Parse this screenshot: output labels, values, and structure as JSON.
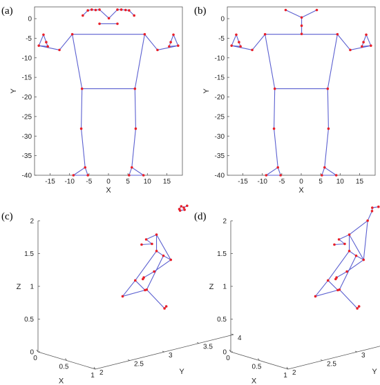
{
  "chart_data": [
    {
      "type": "scatter",
      "label": "(a)",
      "xlabel": "X",
      "ylabel": "Y",
      "xlim": [
        -19,
        19
      ],
      "ylim": [
        -40,
        3
      ],
      "xticks": [
        -15,
        -10,
        -5,
        0,
        5,
        10,
        15
      ],
      "yticks": [
        0,
        -5,
        -10,
        -15,
        -20,
        -25,
        -30,
        -35,
        -40
      ],
      "joints": {
        "neck_l": [
          -2.3,
          -1.3
        ],
        "neck_r": [
          2.3,
          -1.3
        ],
        "f1": [
          -6.6,
          0.8
        ],
        "f2": [
          -5.3,
          2.1
        ],
        "f3": [
          -4.3,
          2.3
        ],
        "f4": [
          -3.3,
          2.2
        ],
        "f5": [
          -2.3,
          2.3
        ],
        "f6": [
          0.1,
          0.1
        ],
        "f7": [
          2.3,
          2.3
        ],
        "f8": [
          3.3,
          2.3
        ],
        "f9": [
          4.4,
          2.2
        ],
        "f10": [
          5.3,
          2.1
        ],
        "f11": [
          6.6,
          0.8
        ],
        "sh_l": [
          -9.3,
          -4.0
        ],
        "sh_r": [
          9.3,
          -4.0
        ],
        "el_l": [
          -12.6,
          -8.0
        ],
        "el_r": [
          12.6,
          -8.0
        ],
        "wr_l": [
          -17.9,
          -6.9
        ],
        "wr_r": [
          17.9,
          -6.9
        ],
        "ha_l": [
          -16.7,
          -4.1
        ],
        "ha_r": [
          16.7,
          -4.1
        ],
        "th_l": [
          -16.0,
          -6.0
        ],
        "th_r": [
          16.0,
          -6.0
        ],
        "fi_l": [
          -15.6,
          -7.1
        ],
        "fi_r": [
          15.6,
          -7.1
        ],
        "hip_l": [
          -6.8,
          -17.9
        ],
        "hip_r": [
          6.8,
          -17.9
        ],
        "kn_l": [
          -7.0,
          -28.1
        ],
        "kn_r": [
          7.0,
          -28.1
        ],
        "an_l": [
          -6.0,
          -38.0
        ],
        "an_r": [
          6.0,
          -38.0
        ],
        "to_l": [
          -9.0,
          -40.0
        ],
        "to_r": [
          9.0,
          -40.0
        ],
        "he_l": [
          -5.3,
          -40.0
        ],
        "he_r": [
          5.3,
          -40.0
        ]
      },
      "bones": [
        [
          "neck_l",
          "neck_r"
        ],
        [
          "f1",
          "f2"
        ],
        [
          "f2",
          "f3"
        ],
        [
          "f3",
          "f4"
        ],
        [
          "f4",
          "f5"
        ],
        [
          "f5",
          "f6"
        ],
        [
          "f6",
          "f7"
        ],
        [
          "f7",
          "f8"
        ],
        [
          "f8",
          "f9"
        ],
        [
          "f9",
          "f10"
        ],
        [
          "f10",
          "f11"
        ],
        [
          "sh_l",
          "sh_r"
        ],
        [
          "sh_l",
          "el_l"
        ],
        [
          "el_l",
          "wr_l"
        ],
        [
          "wr_l",
          "ha_l"
        ],
        [
          "ha_l",
          "th_l"
        ],
        [
          "th_l",
          "fi_l"
        ],
        [
          "fi_l",
          "wr_l"
        ],
        [
          "sh_r",
          "el_r"
        ],
        [
          "el_r",
          "wr_r"
        ],
        [
          "wr_r",
          "ha_r"
        ],
        [
          "ha_r",
          "th_r"
        ],
        [
          "th_r",
          "fi_r"
        ],
        [
          "fi_r",
          "wr_r"
        ],
        [
          "sh_l",
          "hip_l"
        ],
        [
          "sh_r",
          "hip_r"
        ],
        [
          "hip_l",
          "hip_r"
        ],
        [
          "hip_l",
          "kn_l"
        ],
        [
          "kn_l",
          "an_l"
        ],
        [
          "an_l",
          "to_l"
        ],
        [
          "an_l",
          "he_l"
        ],
        [
          "to_l",
          "he_l"
        ],
        [
          "hip_r",
          "kn_r"
        ],
        [
          "kn_r",
          "an_r"
        ],
        [
          "an_r",
          "to_r"
        ],
        [
          "an_r",
          "he_r"
        ],
        [
          "to_r",
          "he_r"
        ]
      ]
    },
    {
      "type": "scatter",
      "label": "(b)",
      "xlabel": "X",
      "ylabel": "Y",
      "xlim": [
        -19,
        19
      ],
      "ylim": [
        -40,
        3
      ],
      "xticks": [
        -15,
        -10,
        -5,
        0,
        5,
        10,
        15
      ],
      "yticks": [
        0,
        -5,
        -10,
        -15,
        -20,
        -25,
        -30,
        -35,
        -40
      ],
      "joints": {
        "head_l": [
          -4.0,
          2.2
        ],
        "head_r": [
          4.0,
          2.2
        ],
        "head_c": [
          0.1,
          0.3
        ],
        "neck1": [
          0.1,
          -1.8
        ],
        "neck2": [
          0.1,
          -3.9
        ],
        "sh_l": [
          -9.3,
          -4.0
        ],
        "sh_r": [
          9.3,
          -4.0
        ],
        "el_l": [
          -12.6,
          -8.0
        ],
        "el_r": [
          12.6,
          -8.0
        ],
        "wr_l": [
          -17.9,
          -6.9
        ],
        "wr_r": [
          17.9,
          -6.9
        ],
        "ha_l": [
          -16.7,
          -4.1
        ],
        "ha_r": [
          16.7,
          -4.1
        ],
        "th_l": [
          -16.0,
          -6.0
        ],
        "th_r": [
          16.0,
          -6.0
        ],
        "fi_l": [
          -15.6,
          -7.1
        ],
        "fi_r": [
          15.6,
          -7.1
        ],
        "hip_l": [
          -6.8,
          -17.9
        ],
        "hip_r": [
          6.8,
          -17.9
        ],
        "kn_l": [
          -7.0,
          -28.1
        ],
        "kn_r": [
          7.0,
          -28.1
        ],
        "an_l": [
          -6.0,
          -38.0
        ],
        "an_r": [
          6.0,
          -38.0
        ],
        "to_l": [
          -9.0,
          -40.0
        ],
        "to_r": [
          9.0,
          -40.0
        ],
        "he_l": [
          -5.3,
          -40.0
        ],
        "he_r": [
          5.3,
          -40.0
        ]
      },
      "bones": [
        [
          "head_l",
          "head_c"
        ],
        [
          "head_r",
          "head_c"
        ],
        [
          "head_c",
          "neck1"
        ],
        [
          "neck1",
          "neck2"
        ],
        [
          "sh_l",
          "sh_r"
        ],
        [
          "sh_l",
          "el_l"
        ],
        [
          "el_l",
          "wr_l"
        ],
        [
          "wr_l",
          "ha_l"
        ],
        [
          "ha_l",
          "th_l"
        ],
        [
          "th_l",
          "fi_l"
        ],
        [
          "fi_l",
          "wr_l"
        ],
        [
          "sh_r",
          "el_r"
        ],
        [
          "el_r",
          "wr_r"
        ],
        [
          "wr_r",
          "ha_r"
        ],
        [
          "ha_r",
          "th_r"
        ],
        [
          "th_r",
          "fi_r"
        ],
        [
          "fi_r",
          "wr_r"
        ],
        [
          "sh_l",
          "hip_l"
        ],
        [
          "sh_r",
          "hip_r"
        ],
        [
          "hip_l",
          "hip_r"
        ],
        [
          "hip_l",
          "kn_l"
        ],
        [
          "kn_l",
          "an_l"
        ],
        [
          "an_l",
          "to_l"
        ],
        [
          "an_l",
          "he_l"
        ],
        [
          "to_l",
          "he_l"
        ],
        [
          "hip_r",
          "kn_r"
        ],
        [
          "kn_r",
          "an_r"
        ],
        [
          "an_r",
          "to_r"
        ],
        [
          "an_r",
          "he_r"
        ],
        [
          "to_r",
          "he_r"
        ]
      ]
    },
    {
      "type": "scatter3d",
      "label": "(c)",
      "xlabel": "X",
      "ylabel": "Y",
      "zlabel": "Z",
      "xlim": [
        0,
        1
      ],
      "ylim": [
        2,
        4
      ],
      "zlim": [
        0,
        2
      ],
      "xticks": [
        "0",
        "0.5",
        "1"
      ],
      "yticks": [
        "2",
        "2.5",
        "3",
        "3.5",
        "4"
      ],
      "zticks": [
        "0",
        "0.5",
        "1",
        "1.5",
        "2"
      ],
      "joints": {
        "h1": [
          0.56,
          3.58,
          1.91
        ],
        "h2": [
          0.57,
          3.6,
          1.95
        ],
        "h3": [
          0.59,
          3.62,
          1.93
        ],
        "h4": [
          0.6,
          3.66,
          1.95
        ],
        "h5": [
          0.58,
          3.64,
          1.89
        ],
        "h6": [
          0.55,
          3.6,
          1.88
        ],
        "sh_a": [
          0.38,
          3.4,
          1.52
        ],
        "sh_b": [
          0.75,
          3.3,
          1.26
        ],
        "el_a": [
          0.2,
          3.4,
          1.4
        ],
        "el_b": [
          0.7,
          3.1,
          1.12
        ],
        "wr_a": [
          0.18,
          3.5,
          1.3
        ],
        "wr_b": [
          0.64,
          3.0,
          1.04
        ],
        "ha_a": [
          0.12,
          3.4,
          1.3
        ],
        "ha_b": [
          0.6,
          3.02,
          1.0
        ],
        "hip_a": [
          0.38,
          3.4,
          1.27
        ],
        "hip_b": [
          0.5,
          3.4,
          1.23
        ],
        "kn_a": [
          0.25,
          3.2,
          0.84
        ],
        "kn_b": [
          0.57,
          3.1,
          0.81
        ],
        "an_a": [
          0.24,
          3.35,
          0.65
        ],
        "an_b": [
          0.64,
          3.3,
          0.49
        ],
        "to_a": [
          0.03,
          3.2,
          0.54
        ],
        "to_b": [
          0.55,
          3.4,
          0.47
        ]
      },
      "bones": [
        [
          "h1",
          "h2"
        ],
        [
          "h2",
          "h3"
        ],
        [
          "h3",
          "h4"
        ],
        [
          "h3",
          "h5"
        ],
        [
          "h5",
          "h6"
        ],
        [
          "sh_a",
          "sh_b"
        ],
        [
          "sh_a",
          "el_a"
        ],
        [
          "el_a",
          "wr_a"
        ],
        [
          "wr_a",
          "ha_a"
        ],
        [
          "sh_b",
          "el_b"
        ],
        [
          "el_b",
          "wr_b"
        ],
        [
          "wr_b",
          "ha_b"
        ],
        [
          "sh_a",
          "hip_a"
        ],
        [
          "sh_b",
          "hip_b"
        ],
        [
          "hip_a",
          "hip_b"
        ],
        [
          "hip_a",
          "kn_a"
        ],
        [
          "kn_a",
          "an_a"
        ],
        [
          "an_a",
          "to_a"
        ],
        [
          "kn_a",
          "to_a"
        ],
        [
          "hip_b",
          "kn_b"
        ],
        [
          "kn_b",
          "an_b"
        ],
        [
          "an_b",
          "to_b"
        ]
      ]
    },
    {
      "type": "scatter3d",
      "label": "(d)",
      "xlabel": "X",
      "ylabel": "Y",
      "zlabel": "Z",
      "xlim": [
        0,
        1
      ],
      "ylim": [
        2,
        4
      ],
      "zlim": [
        0,
        2
      ],
      "xticks": [
        "0",
        "0.5",
        "1"
      ],
      "yticks": [
        "2",
        "2.5",
        "3",
        "3.5",
        "4"
      ],
      "zticks": [
        "0",
        "0.5",
        "1",
        "1.5",
        "2"
      ],
      "joints": {
        "h1": [
          0.54,
          3.6,
          1.92
        ],
        "h2": [
          0.6,
          3.64,
          1.94
        ],
        "h3": [
          0.56,
          3.58,
          1.88
        ],
        "n1": [
          0.58,
          3.5,
          1.76
        ],
        "sh_a": [
          0.38,
          3.4,
          1.52
        ],
        "sh_b": [
          0.75,
          3.3,
          1.26
        ],
        "el_a": [
          0.2,
          3.4,
          1.4
        ],
        "el_b": [
          0.7,
          3.1,
          1.12
        ],
        "wr_a": [
          0.18,
          3.5,
          1.3
        ],
        "wr_b": [
          0.64,
          3.0,
          1.04
        ],
        "ha_a": [
          0.12,
          3.4,
          1.3
        ],
        "ha_b": [
          0.6,
          3.02,
          1.0
        ],
        "hip_a": [
          0.38,
          3.4,
          1.27
        ],
        "hip_b": [
          0.5,
          3.4,
          1.23
        ],
        "kn_a": [
          0.25,
          3.2,
          0.84
        ],
        "kn_b": [
          0.57,
          3.1,
          0.81
        ],
        "an_a": [
          0.24,
          3.35,
          0.65
        ],
        "an_b": [
          0.64,
          3.3,
          0.49
        ],
        "to_a": [
          0.03,
          3.2,
          0.54
        ],
        "to_b": [
          0.55,
          3.4,
          0.47
        ]
      },
      "bones": [
        [
          "h1",
          "h2"
        ],
        [
          "h1",
          "h3"
        ],
        [
          "h3",
          "n1"
        ],
        [
          "n1",
          "sh_a"
        ],
        [
          "n1",
          "sh_b"
        ],
        [
          "sh_a",
          "sh_b"
        ],
        [
          "sh_a",
          "el_a"
        ],
        [
          "el_a",
          "wr_a"
        ],
        [
          "wr_a",
          "ha_a"
        ],
        [
          "sh_b",
          "el_b"
        ],
        [
          "el_b",
          "wr_b"
        ],
        [
          "wr_b",
          "ha_b"
        ],
        [
          "sh_a",
          "hip_a"
        ],
        [
          "sh_b",
          "hip_b"
        ],
        [
          "hip_a",
          "hip_b"
        ],
        [
          "hip_a",
          "kn_a"
        ],
        [
          "kn_a",
          "an_a"
        ],
        [
          "an_a",
          "to_a"
        ],
        [
          "kn_a",
          "to_a"
        ],
        [
          "hip_b",
          "kn_b"
        ],
        [
          "kn_b",
          "an_b"
        ],
        [
          "an_b",
          "to_b"
        ]
      ]
    }
  ]
}
